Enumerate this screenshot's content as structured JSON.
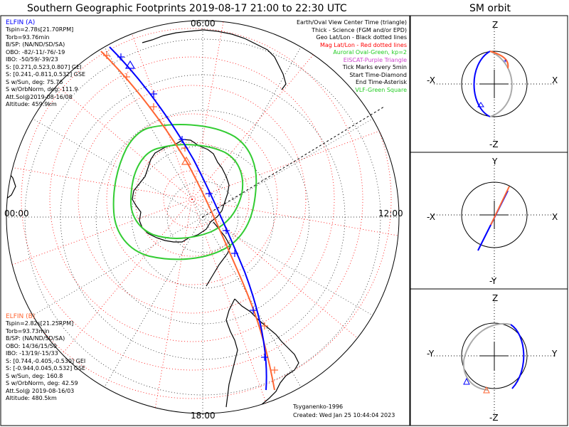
{
  "title": "Southern Geographic Footprints 2019-08-17 21:00 to 22:30 UTC",
  "orbit_title": "SM orbit",
  "mlt_labels": {
    "top": "06:00",
    "left": "00:00",
    "right": "12:00",
    "bottom": "18:00"
  },
  "legend": [
    {
      "text": "Earth/Oval View Center Time (triangle)",
      "color": "#000000"
    },
    {
      "text": "Thick - Science (FGM and/or EPD)",
      "color": "#000000"
    },
    {
      "text": "Geo Lat/Lon - Black dotted lines",
      "color": "#000000"
    },
    {
      "text": "Mag Lat/Lon - Red dotted lines",
      "color": "#ff0000"
    },
    {
      "text": "Auroral Oval-Green, kp=2",
      "color": "#22cc22"
    },
    {
      "text": "EISCAT-Purple Triangle",
      "color": "#cc44cc"
    },
    {
      "text": "Tick Marks every 5min",
      "color": "#000000"
    },
    {
      "text": "Start Time-Diamond",
      "color": "#000000"
    },
    {
      "text": "End Time-Asterisk",
      "color": "#000000"
    },
    {
      "text": "VLF-Green Square",
      "color": "#22cc22"
    }
  ],
  "elfin_a": {
    "name": "ELFIN (A)",
    "color": "#0000ff",
    "lines": [
      "Tspin=2.78s[21.70RPM]",
      "Torb=93.76min",
      "B/SP: (NA/ND/SD/SA)",
      "OBO: -82/-11/-76/-19",
      "IBO: -50/59/-39/23",
      "S: [0.271,0.523,0.807] GEI",
      "S: [0.241,-0.811,0.532] GSE",
      "S w/Sun, deg: 75.76",
      "S w/OrbNorm, deg: 111.9",
      "Att.Sol@2019-08-16/08",
      "Altitude: 459.9km"
    ]
  },
  "elfin_b": {
    "name": "ELFIN (B)",
    "color": "#ff6633",
    "lines": [
      "Tspin=2.82s[21.25RPM]",
      "Torb=93.73min",
      "B/SP: (NA/ND/SD/SA)",
      "OBO: 14/36/15/50",
      "IBO: -13/19/-15/33",
      "S: [0.744,-0.405,-0.530] GEI",
      "S: [-0.944,0.045,0.532] GSE",
      "S w/Sun, deg: 160.8",
      "S w/OrbNorm, deg: 42.59",
      "Att.Sol@ 2019-08-16/03",
      "Altitude: 480.5km"
    ]
  },
  "credit": "Tsyganenko-1996",
  "created": "Created: Wed Jan 25 10:44:04 2023",
  "orbit_panels": [
    {
      "top": "Z",
      "bottom": "-Z",
      "left": "-X",
      "right": "X"
    },
    {
      "top": "Y",
      "bottom": "-Y",
      "left": "-X",
      "right": "X"
    },
    {
      "top": "Z",
      "bottom": "-Z",
      "left": "-Y",
      "right": "Y"
    }
  ],
  "colors": {
    "elfin_a": "#0000ff",
    "elfin_b": "#ff6633",
    "oval": "#33cc33",
    "mag_grid": "#ff0000",
    "geo_grid": "#000000"
  }
}
